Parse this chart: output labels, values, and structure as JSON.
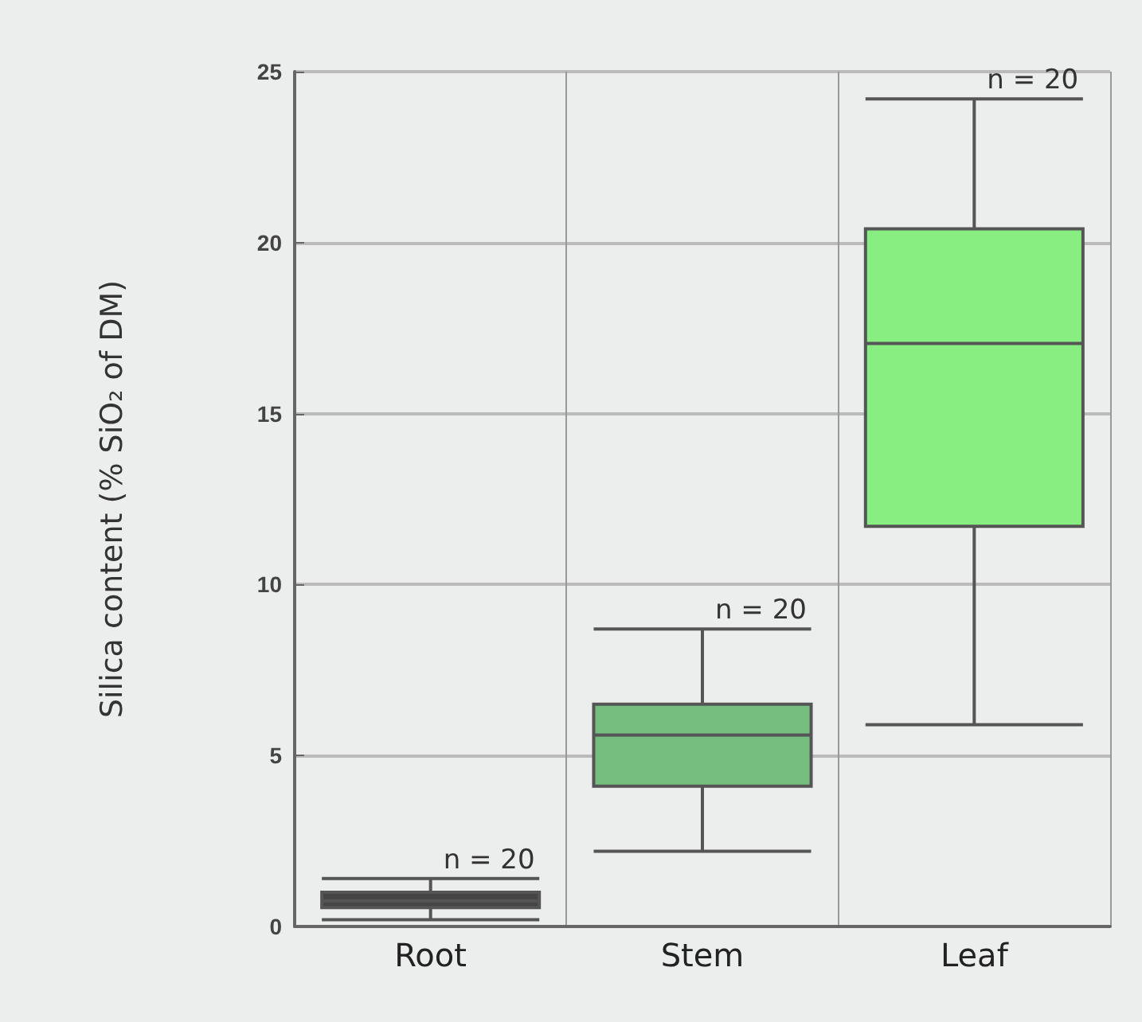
{
  "chart_data": {
    "type": "box",
    "ylabel": "Silica content (% SiO₂ of DM)",
    "categories": [
      "Root",
      "Stem",
      "Leaf"
    ],
    "boxes": [
      {
        "low": 0.2,
        "q1": 0.55,
        "median": 0.75,
        "q3": 1.0,
        "high": 1.4
      },
      {
        "low": 2.2,
        "q1": 4.1,
        "median": 5.6,
        "q3": 6.5,
        "high": 8.7
      },
      {
        "low": 5.9,
        "q1": 11.7,
        "median": 17.05,
        "q3": 20.4,
        "high": 24.2
      }
    ],
    "colors": [
      "#454545",
      "#74bf80",
      "#88ee82"
    ],
    "ylim": [
      0,
      25
    ],
    "yticks": [
      0,
      5,
      10,
      15,
      20,
      25
    ],
    "grid": true,
    "annotations": [
      "n = 20",
      "n = 20",
      "n = 20"
    ]
  }
}
